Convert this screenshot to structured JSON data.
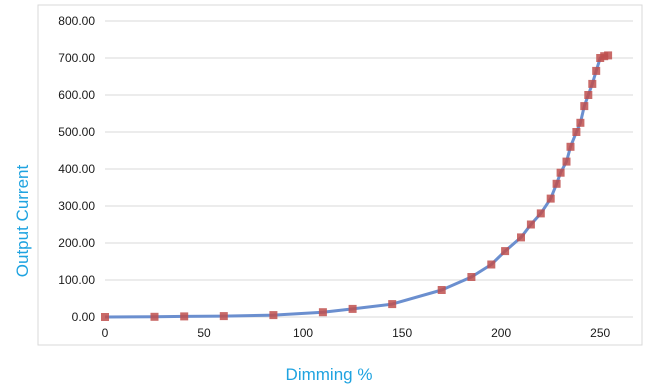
{
  "chart_data": {
    "type": "line",
    "xlabel": "Dimming %",
    "ylabel": "Output Current",
    "xlim": [
      0,
      260
    ],
    "ylim": [
      0,
      800
    ],
    "x_ticks": [
      "0",
      "50",
      "100",
      "150",
      "200",
      "250"
    ],
    "y_ticks": [
      "0.00",
      "100.00",
      "200.00",
      "300.00",
      "400.00",
      "500.00",
      "600.00",
      "700.00",
      "800.00"
    ],
    "grid": true,
    "legend": "none",
    "series": [
      {
        "line_color": "#6b8fcf",
        "marker_color": "#c0504d",
        "x": [
          0,
          25,
          40,
          60,
          85,
          110,
          125,
          145,
          170,
          185,
          195,
          202,
          210,
          215,
          220,
          225,
          228,
          230,
          233,
          235,
          238,
          240,
          242,
          244,
          246,
          248,
          250,
          252,
          254
        ],
        "y": [
          0,
          0.5,
          1.5,
          2.5,
          5,
          13,
          22,
          35,
          73,
          108,
          142,
          178,
          215,
          250,
          280,
          320,
          360,
          390,
          420,
          460,
          500,
          525,
          570,
          600,
          630,
          665,
          700,
          705,
          707
        ]
      }
    ]
  }
}
